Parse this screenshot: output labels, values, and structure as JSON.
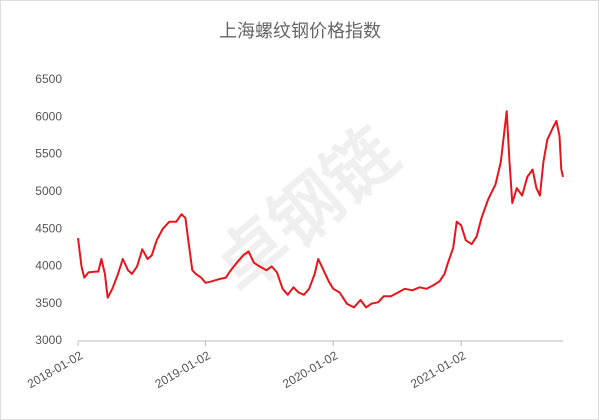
{
  "chart_data": {
    "type": "line",
    "title": "上海螺纹钢价格指数",
    "watermark": "卓钢链",
    "x": [
      "2018-01-02",
      "2018-01-12",
      "2018-01-20",
      "2018-02-01",
      "2018-02-20",
      "2018-03-01",
      "2018-03-10",
      "2018-03-20",
      "2018-03-28",
      "2018-04-10",
      "2018-04-25",
      "2018-05-10",
      "2018-05-25",
      "2018-06-05",
      "2018-06-20",
      "2018-07-05",
      "2018-07-20",
      "2018-08-01",
      "2018-08-15",
      "2018-09-01",
      "2018-09-20",
      "2018-10-10",
      "2018-10-25",
      "2018-11-05",
      "2018-11-15",
      "2018-11-25",
      "2018-12-05",
      "2018-12-20",
      "2019-01-02",
      "2019-01-20",
      "2019-02-10",
      "2019-03-01",
      "2019-03-15",
      "2019-04-01",
      "2019-04-20",
      "2019-05-05",
      "2019-05-20",
      "2019-06-05",
      "2019-06-25",
      "2019-07-10",
      "2019-07-25",
      "2019-08-10",
      "2019-08-25",
      "2019-09-10",
      "2019-09-25",
      "2019-10-10",
      "2019-10-25",
      "2019-11-10",
      "2019-11-20",
      "2019-12-05",
      "2019-12-20",
      "2020-01-02",
      "2020-01-20",
      "2020-02-10",
      "2020-03-01",
      "2020-03-20",
      "2020-04-05",
      "2020-04-20",
      "2020-05-10",
      "2020-05-25",
      "2020-06-15",
      "2020-07-05",
      "2020-07-25",
      "2020-08-15",
      "2020-09-05",
      "2020-09-25",
      "2020-10-15",
      "2020-11-01",
      "2020-11-15",
      "2020-11-25",
      "2020-12-10",
      "2020-12-20",
      "2021-01-02",
      "2021-01-15",
      "2021-02-01",
      "2021-02-15",
      "2021-03-01",
      "2021-03-20",
      "2021-04-10",
      "2021-04-25",
      "2021-05-12",
      "2021-05-20",
      "2021-05-28",
      "2021-06-10",
      "2021-06-25",
      "2021-07-10",
      "2021-07-25",
      "2021-08-05",
      "2021-08-15",
      "2021-08-25",
      "2021-09-05",
      "2021-09-20",
      "2021-10-01",
      "2021-10-10",
      "2021-10-15",
      "2021-10-20"
    ],
    "series": [
      {
        "name": "上海螺纹钢价格指数",
        "color": "#e8141b",
        "values": [
          4380,
          4000,
          3850,
          3920,
          3930,
          3930,
          4100,
          3900,
          3580,
          3700,
          3880,
          4100,
          3950,
          3900,
          4000,
          4230,
          4100,
          4150,
          4350,
          4500,
          4600,
          4600,
          4700,
          4650,
          4300,
          3950,
          3900,
          3850,
          3780,
          3800,
          3830,
          3850,
          3950,
          4050,
          4150,
          4200,
          4050,
          4000,
          3950,
          4000,
          3920,
          3700,
          3620,
          3720,
          3650,
          3620,
          3700,
          3900,
          4100,
          3950,
          3800,
          3700,
          3650,
          3500,
          3450,
          3550,
          3450,
          3500,
          3520,
          3600,
          3600,
          3650,
          3700,
          3680,
          3720,
          3700,
          3750,
          3800,
          3900,
          4050,
          4250,
          4600,
          4550,
          4350,
          4300,
          4400,
          4650,
          4900,
          5100,
          5400,
          6080,
          5400,
          4850,
          5050,
          4950,
          5200,
          5300,
          5050,
          4950,
          5400,
          5700,
          5850,
          5950,
          5750,
          5300,
          5200
        ]
      }
    ],
    "xlim": [
      "2018-01-02",
      "2021-10-20"
    ],
    "xticks": [
      "2018-01-02",
      "2019-01-02",
      "2020-01-02",
      "2021-01-02"
    ],
    "ylim": [
      3000,
      6500
    ],
    "yticks": [
      3000,
      3500,
      4000,
      4500,
      5000,
      5500,
      6000,
      6500
    ],
    "grid": false
  }
}
